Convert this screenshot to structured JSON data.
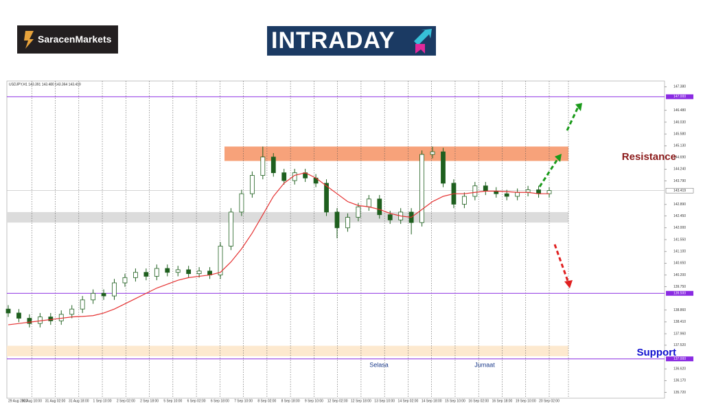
{
  "header": {
    "brand": "SaracenMarkets",
    "logo": "INTRADAY"
  },
  "chart_data": {
    "type": "candlestick",
    "title": "USDJPY,H1 143.391 143.480 143.364 143.419",
    "color": "#1e5f1e",
    "ma_color": "#e53030",
    "xticks": [
      "29 Aug 2022",
      "30 Aug 10:00",
      "31 Aug 02:00",
      "31 Aug 18:00",
      "1 Sep 10:00",
      "2 Sep 02:00",
      "2 Sep 18:00",
      "5 Sep 10:00",
      "6 Sep 02:00",
      "6 Sep 18:00",
      "7 Sep 10:00",
      "8 Sep 02:00",
      "8 Sep 18:00",
      "9 Sep 10:00",
      "12 Sep 02:00",
      "12 Sep 18:00",
      "13 Sep 10:00",
      "14 Sep 02:00",
      "14 Sep 18:00",
      "15 Sep 10:00",
      "16 Sep 02:00",
      "16 Sep 18:00",
      "19 Sep 10:00",
      "20 Sep 02:00"
    ],
    "candles": {
      "open": [
        138.9,
        138.75,
        138.55,
        138.35,
        138.6,
        138.45,
        138.7,
        138.9,
        139.25,
        139.5,
        139.4,
        139.9,
        140.1,
        140.3,
        140.15,
        140.45,
        140.3,
        140.4,
        140.25,
        140.35,
        140.2,
        141.3,
        142.6,
        143.3,
        144.0,
        144.7,
        144.1,
        143.8,
        144.1,
        143.9,
        143.7,
        142.6,
        142.0,
        142.4,
        142.8,
        143.1,
        142.5,
        142.3,
        142.6,
        142.2,
        144.8,
        144.9,
        143.7,
        142.9,
        143.2,
        143.6,
        143.4,
        143.3,
        143.2,
        143.35,
        143.45,
        143.3
      ],
      "high": [
        139.05,
        138.9,
        138.7,
        138.75,
        138.75,
        138.85,
        139.05,
        139.4,
        139.65,
        139.65,
        140.05,
        140.25,
        140.45,
        140.45,
        140.6,
        140.6,
        140.55,
        140.55,
        140.5,
        140.5,
        141.45,
        142.75,
        143.45,
        144.15,
        145.1,
        144.85,
        144.25,
        144.25,
        144.25,
        144.05,
        143.85,
        142.75,
        142.55,
        142.95,
        143.25,
        143.25,
        142.65,
        142.75,
        142.75,
        144.95,
        145.1,
        145.05,
        143.85,
        143.35,
        143.75,
        143.75,
        143.55,
        143.45,
        143.5,
        143.6,
        143.6,
        143.55
      ],
      "low": [
        138.6,
        138.4,
        138.2,
        138.2,
        138.3,
        138.3,
        138.55,
        138.75,
        139.1,
        139.25,
        139.25,
        139.75,
        139.95,
        140.0,
        140.0,
        140.15,
        140.15,
        140.1,
        140.1,
        140.05,
        140.05,
        141.15,
        142.45,
        143.15,
        143.85,
        143.95,
        143.65,
        143.65,
        143.75,
        143.55,
        142.45,
        141.6,
        141.85,
        142.25,
        142.65,
        142.35,
        142.15,
        142.15,
        141.75,
        142.05,
        144.65,
        143.55,
        142.75,
        142.75,
        143.05,
        143.25,
        143.15,
        143.05,
        143.05,
        143.2,
        143.15,
        143.15
      ],
      "close": [
        138.75,
        138.55,
        138.35,
        138.6,
        138.45,
        138.7,
        138.9,
        139.25,
        139.5,
        139.4,
        139.9,
        140.1,
        140.3,
        140.15,
        140.45,
        140.3,
        140.4,
        140.25,
        140.35,
        140.2,
        141.3,
        142.6,
        143.3,
        144.0,
        144.7,
        144.1,
        143.8,
        144.1,
        143.9,
        143.7,
        142.6,
        142.0,
        142.4,
        142.8,
        143.1,
        142.5,
        142.3,
        142.6,
        142.2,
        144.8,
        144.9,
        143.7,
        142.9,
        143.2,
        143.6,
        143.4,
        143.3,
        143.2,
        143.35,
        143.45,
        143.3,
        143.42
      ]
    },
    "ma": [
      138.3,
      138.35,
      138.4,
      138.45,
      138.5,
      138.55,
      138.6,
      138.62,
      138.65,
      138.75,
      138.9,
      139.1,
      139.3,
      139.5,
      139.7,
      139.85,
      140.0,
      140.1,
      140.15,
      140.2,
      140.3,
      140.7,
      141.2,
      141.8,
      142.5,
      143.2,
      143.7,
      144.0,
      144.1,
      143.9,
      143.6,
      143.3,
      143.0,
      142.85,
      142.8,
      142.7,
      142.55,
      142.45,
      142.4,
      142.7,
      143.0,
      143.2,
      143.3,
      143.3,
      143.35,
      143.4,
      143.4,
      143.38,
      143.35,
      143.35,
      143.3,
      143.3
    ],
    "ylim": [
      135.5,
      147.6
    ],
    "yticks": [
      {
        "value": 147.38,
        "label": "147.380"
      },
      {
        "value": 146.48,
        "label": "146.480"
      },
      {
        "value": 146.03,
        "label": "146.030"
      },
      {
        "value": 145.58,
        "label": "145.580"
      },
      {
        "value": 145.13,
        "label": "145.130"
      },
      {
        "value": 144.69,
        "label": "144.690"
      },
      {
        "value": 144.24,
        "label": "144.240"
      },
      {
        "value": 143.79,
        "label": "143.790"
      },
      {
        "value": 142.89,
        "label": "142.890"
      },
      {
        "value": 142.45,
        "label": "142.450"
      },
      {
        "value": 142.0,
        "label": "142.000"
      },
      {
        "value": 141.55,
        "label": "141.550"
      },
      {
        "value": 141.1,
        "label": "141.100"
      },
      {
        "value": 140.65,
        "label": "140.650"
      },
      {
        "value": 140.2,
        "label": "140.200"
      },
      {
        "value": 139.75,
        "label": "139.750"
      },
      {
        "value": 138.86,
        "label": "138.860"
      },
      {
        "value": 138.41,
        "label": "138.410"
      },
      {
        "value": 137.96,
        "label": "137.960"
      },
      {
        "value": 137.52,
        "label": "137.520"
      },
      {
        "value": 136.62,
        "label": "136.620"
      },
      {
        "value": 136.17,
        "label": "136.170"
      },
      {
        "value": 135.72,
        "label": "135.720"
      }
    ],
    "levels": [
      {
        "value": 147.0,
        "label": "147.000"
      },
      {
        "value": 139.5,
        "label": "139.500"
      },
      {
        "value": 137.0,
        "label": "137.000"
      }
    ],
    "current_price": {
      "value": 143.419,
      "label": "143.419"
    },
    "zones": [
      {
        "name": "Resistance",
        "from": 144.55,
        "to": 145.1,
        "color": "#f7a27a"
      },
      {
        "from": 142.2,
        "to": 142.6,
        "color": "#dcdcdc"
      },
      {
        "name": "Support",
        "from": 137.1,
        "to": 137.5,
        "color": "#fde9cf"
      }
    ],
    "annotations": [
      "Selasa",
      "Jumaat"
    ]
  }
}
